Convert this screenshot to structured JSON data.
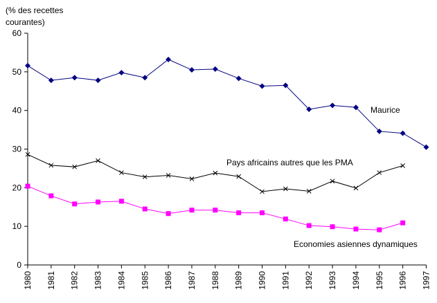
{
  "chart_data": {
    "type": "line",
    "title": "",
    "ylabel": "(% des recettes courantes)",
    "ylabel_lines": [
      "(% des recettes",
      "courantes)"
    ],
    "xlabel": "",
    "ylim": [
      0,
      60
    ],
    "yticks": [
      0,
      10,
      20,
      30,
      40,
      50,
      60
    ],
    "grid": false,
    "categories": [
      "1980",
      "1981",
      "1982",
      "1983",
      "1984",
      "1985",
      "1986",
      "1987",
      "1988",
      "1989",
      "1990",
      "1991",
      "1992",
      "1993",
      "1994",
      "1995",
      "1996",
      "1997"
    ],
    "series": [
      {
        "name": "Maurice",
        "color": "#000080",
        "marker": "diamond",
        "values": [
          51.6,
          47.8,
          48.5,
          47.8,
          49.8,
          48.5,
          53.2,
          50.5,
          50.7,
          48.3,
          46.3,
          46.5,
          40.3,
          41.3,
          40.8,
          34.6,
          34.1,
          30.5
        ]
      },
      {
        "name": "Pays africains autres que les PMA",
        "color": "#000000",
        "marker": "x",
        "values": [
          28.6,
          25.8,
          25.4,
          27.0,
          23.9,
          22.8,
          23.2,
          22.3,
          23.8,
          22.9,
          19.0,
          19.7,
          19.1,
          21.7,
          19.9,
          23.9,
          25.7,
          null
        ]
      },
      {
        "name": "Economies asiennes dynamiques",
        "color": "#ff00ff",
        "marker": "square",
        "values": [
          20.4,
          17.9,
          15.8,
          16.3,
          16.5,
          14.5,
          13.3,
          14.2,
          14.2,
          13.5,
          13.5,
          11.9,
          10.2,
          9.9,
          9.3,
          9.1,
          10.9,
          null
        ]
      }
    ],
    "annotations": [
      {
        "text": "Maurice",
        "series": 0
      },
      {
        "text": "Pays africains autres que les PMA",
        "series": 1
      },
      {
        "text": "Economies asiennes dynamiques",
        "series": 2
      }
    ]
  }
}
